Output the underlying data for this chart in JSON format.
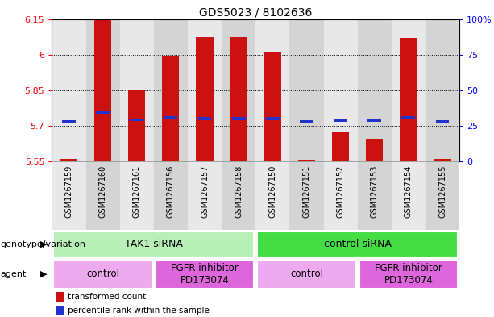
{
  "title": "GDS5023 / 8102636",
  "samples": [
    "GSM1267159",
    "GSM1267160",
    "GSM1267161",
    "GSM1267156",
    "GSM1267157",
    "GSM1267158",
    "GSM1267150",
    "GSM1267151",
    "GSM1267152",
    "GSM1267153",
    "GSM1267154",
    "GSM1267155"
  ],
  "bar_tops": [
    5.563,
    6.148,
    5.855,
    5.995,
    6.075,
    6.075,
    6.01,
    5.558,
    5.675,
    5.645,
    6.07,
    5.563
  ],
  "bar_bottoms": [
    5.55,
    5.55,
    5.55,
    5.55,
    5.55,
    5.55,
    5.55,
    5.55,
    5.55,
    5.55,
    5.55,
    5.55
  ],
  "blue_y": [
    5.718,
    5.758,
    5.726,
    5.734,
    5.732,
    5.732,
    5.732,
    5.718,
    5.724,
    5.724,
    5.734,
    5.72
  ],
  "ylim_left": [
    5.55,
    6.15
  ],
  "yticks_left": [
    5.55,
    5.7,
    5.85,
    6.0,
    6.15
  ],
  "yticks_right": [
    0,
    25,
    50,
    75,
    100
  ],
  "ytick_labels_left": [
    "5.55",
    "5.7",
    "5.85",
    "6",
    "6.15"
  ],
  "ytick_labels_right": [
    "0",
    "25",
    "50",
    "75",
    "100%"
  ],
  "bar_color": "#cc1111",
  "blue_color": "#2233cc",
  "bg_color": "#ffffff",
  "col_bg_even": "#e8e8e8",
  "col_bg_odd": "#d4d4d4",
  "genotype_groups": [
    {
      "label": "TAK1 siRNA",
      "start": 0,
      "end": 6,
      "color": "#b8f0b8"
    },
    {
      "label": "control siRNA",
      "start": 6,
      "end": 12,
      "color": "#44dd44"
    }
  ],
  "agent_groups": [
    {
      "label": "control",
      "start": 0,
      "end": 3,
      "color": "#eeaaee"
    },
    {
      "label": "FGFR inhibitor\nPD173074",
      "start": 3,
      "end": 6,
      "color": "#dd66dd"
    },
    {
      "label": "control",
      "start": 6,
      "end": 9,
      "color": "#eeaaee"
    },
    {
      "label": "FGFR inhibitor\nPD173074",
      "start": 9,
      "end": 12,
      "color": "#dd66dd"
    }
  ],
  "title_fontsize": 10,
  "tick_fontsize": 8,
  "sample_fontsize": 7,
  "row_label_fontsize": 8,
  "group_label_fontsize": 9
}
